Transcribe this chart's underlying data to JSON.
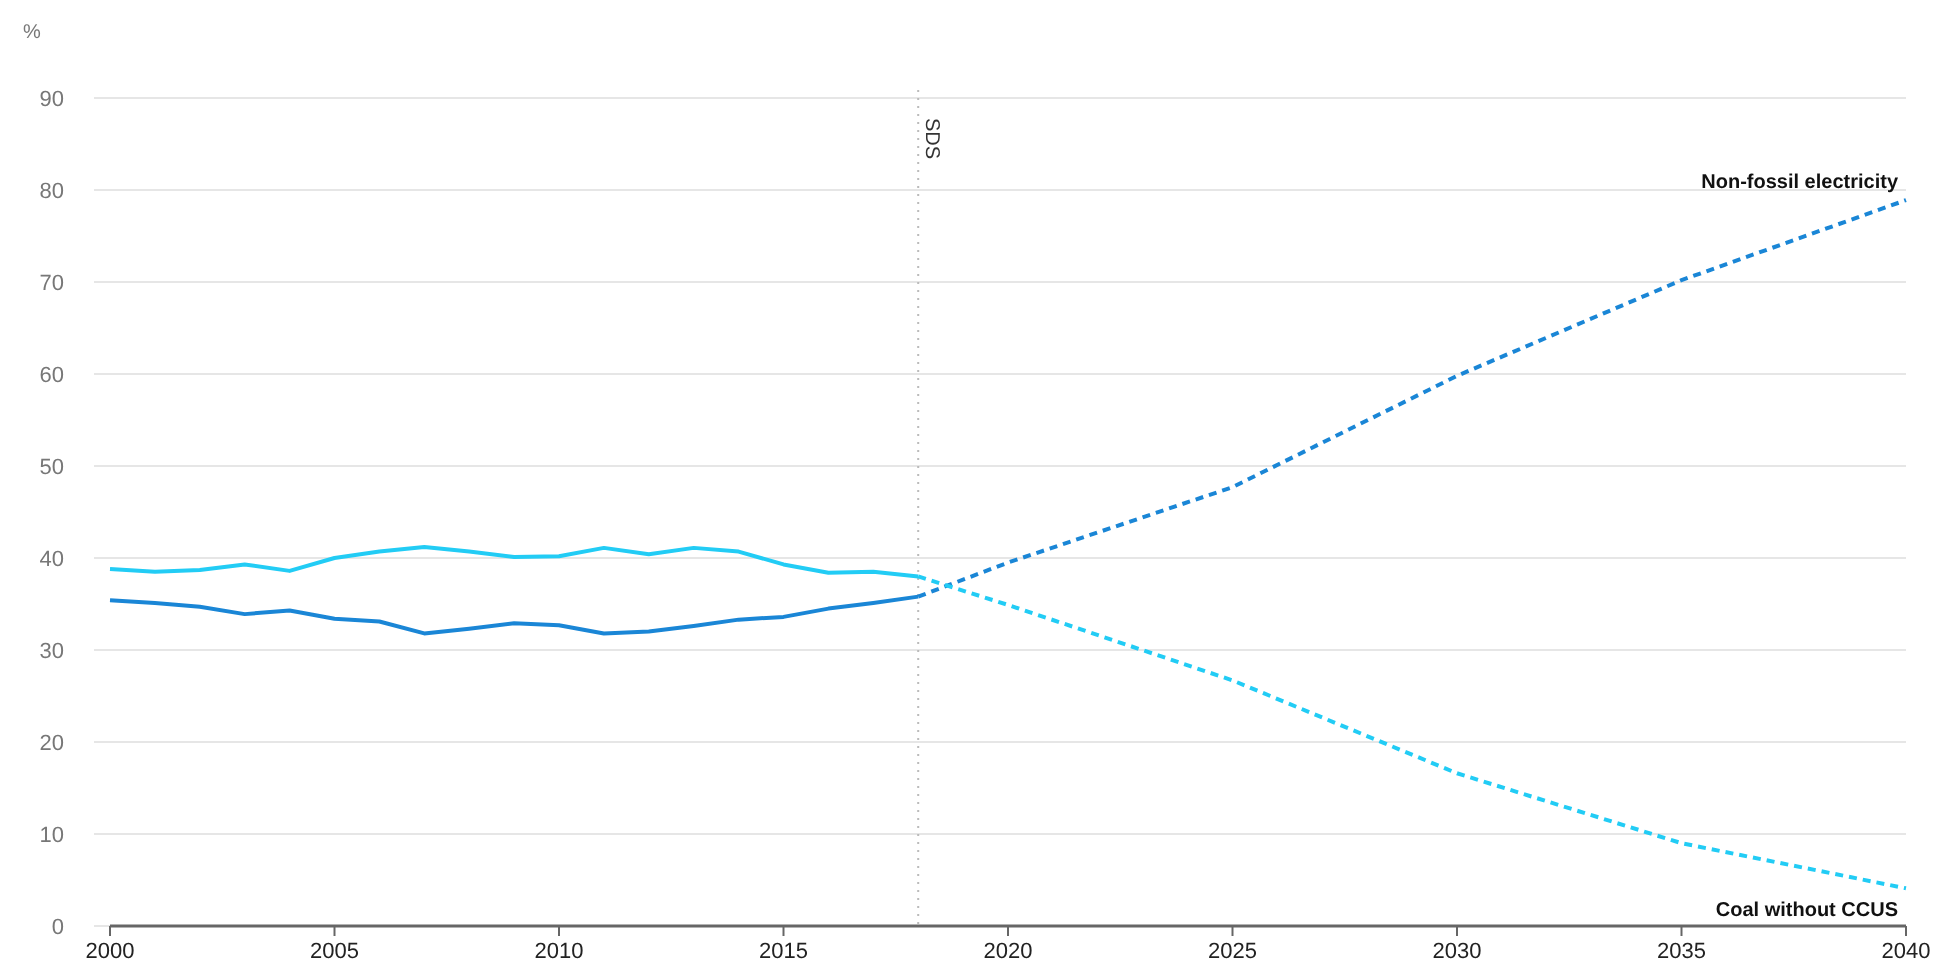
{
  "chart_data": {
    "type": "line",
    "ylabel": "%",
    "xlim": [
      2000,
      2040
    ],
    "xticks": [
      2000,
      2005,
      2010,
      2015,
      2020,
      2025,
      2030,
      2035,
      2040
    ],
    "ylim": [
      0,
      90
    ],
    "yticks": [
      0,
      10,
      20,
      30,
      40,
      50,
      60,
      70,
      80,
      90
    ],
    "grid": "y",
    "ref_lines": [
      {
        "axis": "x",
        "value": 2018,
        "label": "SDS",
        "color": "#bbbbbb",
        "line_style": "dotted"
      }
    ],
    "series": [
      {
        "color": "#22ccf5",
        "line_style": "solid",
        "x": [
          2000,
          2001,
          2002,
          2003,
          2004,
          2005,
          2006,
          2007,
          2008,
          2009,
          2010,
          2011,
          2012,
          2013,
          2014,
          2015,
          2016,
          2017,
          2018
        ],
        "values": [
          38.8,
          38.5,
          38.7,
          39.3,
          38.6,
          40.0,
          40.7,
          41.2,
          40.7,
          40.1,
          40.2,
          41.1,
          40.4,
          41.1,
          40.7,
          39.3,
          38.4,
          38.5,
          38.0
        ]
      },
      {
        "color": "#1a86d6",
        "line_style": "solid",
        "x": [
          2000,
          2001,
          2002,
          2003,
          2004,
          2005,
          2006,
          2007,
          2008,
          2009,
          2010,
          2011,
          2012,
          2013,
          2014,
          2015,
          2016,
          2017,
          2018
        ],
        "values": [
          35.4,
          35.1,
          34.7,
          33.9,
          34.3,
          33.4,
          33.1,
          31.8,
          32.3,
          32.9,
          32.7,
          31.8,
          32.0,
          32.6,
          33.3,
          33.6,
          34.5,
          35.1,
          35.8
        ]
      },
      {
        "name": "Non-fossil electricity",
        "color": "#1a86d6",
        "line_style": "dashed",
        "x": [
          2018,
          2020,
          2025,
          2030,
          2035,
          2040
        ],
        "values": [
          35.8,
          39.5,
          47.7,
          59.8,
          70.2,
          78.9
        ]
      },
      {
        "name": "Coal without CCUS",
        "color": "#22ccf5",
        "line_style": "dashed",
        "x": [
          2018,
          2020,
          2025,
          2030,
          2035,
          2040
        ],
        "values": [
          38.0,
          34.9,
          26.7,
          16.6,
          9.0,
          4.1
        ]
      }
    ]
  }
}
